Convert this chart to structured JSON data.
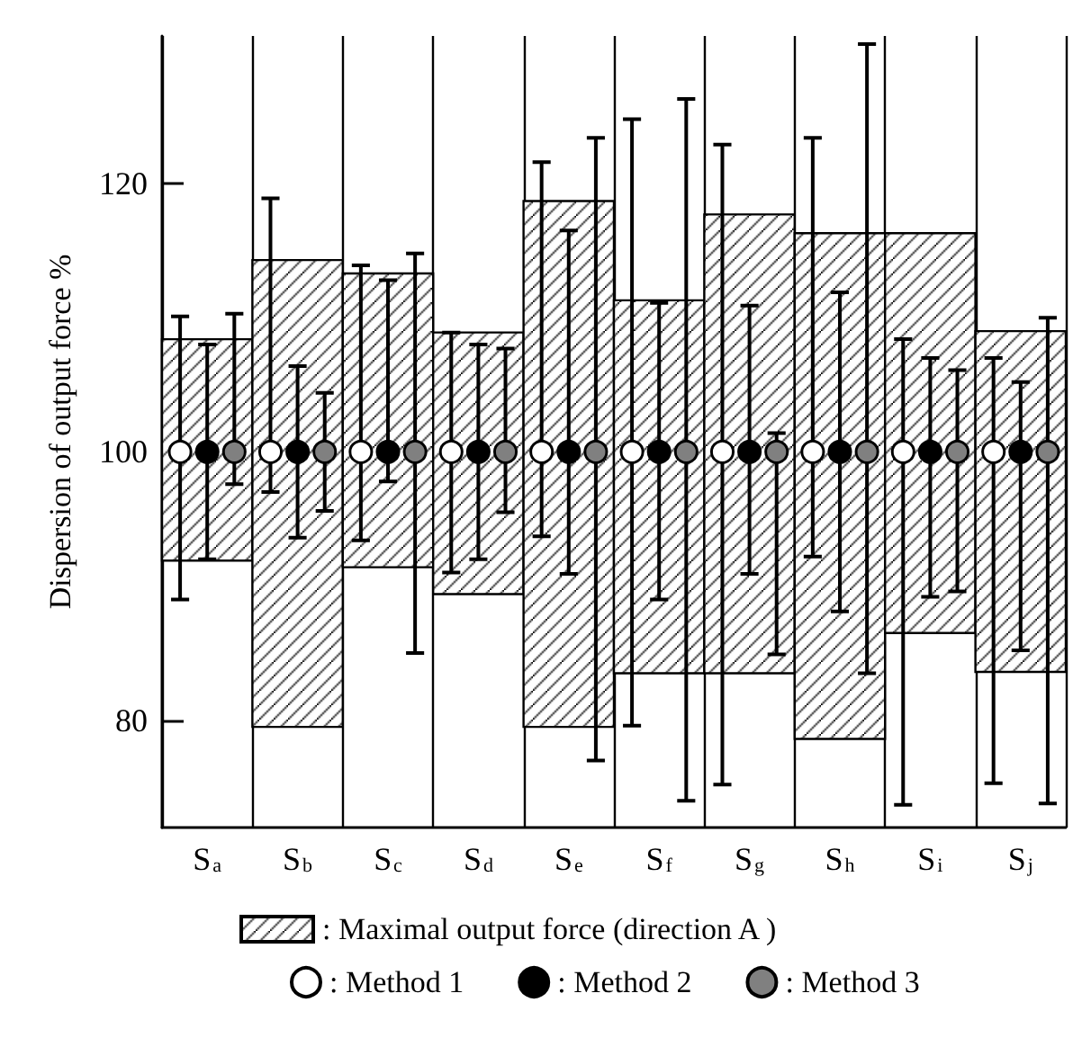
{
  "chart_data": {
    "type": "bar",
    "ylabel": "Dispersion of output force %",
    "categories": [
      "S$_{a}$",
      "S$_{b}$",
      "S$_{c}$",
      "S$_{d}$",
      "S$_{e}$",
      "S$_{f}$",
      "S$_{g}$",
      "S$_{h}$",
      "S$_{i}$",
      "S$_{j}$"
    ],
    "ylim": [
      72,
      131
    ],
    "yticks": [
      80,
      100,
      120
    ],
    "grid": "x",
    "legend": "bottom",
    "marker": "circle",
    "series": [
      {
        "name": ": Maximal output force (direction A )",
        "type": "bar",
        "color": "#000000",
        "base": [
          91.9,
          79.5,
          91.4,
          89.4,
          79.5,
          83.5,
          83.5,
          78.6,
          86.5,
          83.6
        ],
        "values": [
          16.5,
          34.8,
          21.9,
          19.5,
          39.2,
          27.8,
          34.2,
          37.7,
          29.8,
          25.4
        ]
      },
      {
        "name": ": Method 1",
        "type": "scatter",
        "color": "#ffffff",
        "values": [
          100,
          100,
          100,
          100,
          100,
          100,
          100,
          100,
          100,
          100
        ],
        "errors": [
          [
            89.0,
            110.1
          ],
          [
            97.0,
            118.9
          ],
          [
            93.4,
            113.9
          ],
          [
            91.0,
            108.9
          ],
          [
            93.7,
            121.6
          ],
          [
            79.6,
            124.8
          ],
          [
            75.2,
            122.9
          ],
          [
            92.2,
            123.4
          ],
          [
            73.7,
            108.4
          ],
          [
            75.3,
            107.0
          ]
        ]
      },
      {
        "name": ": Method 2",
        "type": "scatter",
        "color": "#000000",
        "values": [
          100,
          100,
          100,
          100,
          100,
          100,
          100,
          100,
          100,
          100
        ],
        "errors": [
          [
            92.0,
            108.0
          ],
          [
            93.6,
            106.4
          ],
          [
            97.8,
            112.8
          ],
          [
            92.0,
            108.0
          ],
          [
            90.9,
            116.5
          ],
          [
            89.0,
            111.1
          ],
          [
            90.9,
            110.9
          ],
          [
            88.1,
            111.9
          ],
          [
            89.2,
            107.0
          ],
          [
            85.2,
            105.2
          ]
        ]
      },
      {
        "name": ": Method 3",
        "type": "scatter",
        "color": "#808080",
        "values": [
          100,
          100,
          100,
          100,
          100,
          100,
          100,
          100,
          100,
          100
        ],
        "errors": [
          [
            97.6,
            110.3
          ],
          [
            95.6,
            104.4
          ],
          [
            85.0,
            114.8
          ],
          [
            95.5,
            107.7
          ],
          [
            77.0,
            123.4
          ],
          [
            74.0,
            126.3
          ],
          [
            84.9,
            101.4
          ],
          [
            83.5,
            130.4
          ],
          [
            89.6,
            106.1
          ],
          [
            73.8,
            110.0
          ]
        ]
      }
    ]
  }
}
